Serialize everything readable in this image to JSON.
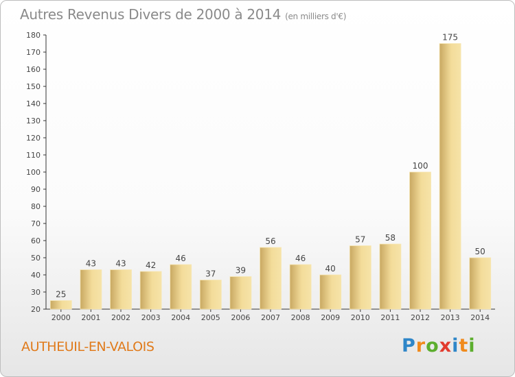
{
  "header": {
    "title": "Autres Revenus Divers de 2000 à 2014",
    "unit": "(en milliers d'€)"
  },
  "footer": {
    "commune": "AUTHEUIL-EN-VALOIS",
    "logo_letters": [
      "P",
      "r",
      "o",
      "x",
      "i",
      "t",
      "i"
    ],
    "logo_colors": [
      "#2e86c8",
      "#f08a1c",
      "#5cae2e",
      "#e23b2e",
      "#2e86c8",
      "#f08a1c",
      "#5cae2e"
    ]
  },
  "colors": {
    "bar_light": "#f6e3a6",
    "bar_dark": "#c9aa62",
    "axis": "#333333",
    "title": "#8a8a8a",
    "commune": "#e07a1a"
  },
  "chart_data": {
    "type": "bar",
    "title": "Autres Revenus Divers de 2000 à 2014",
    "subtitle": "(en milliers d'€)",
    "xlabel": "",
    "ylabel": "",
    "categories": [
      "2000",
      "2001",
      "2002",
      "2003",
      "2004",
      "2005",
      "2006",
      "2007",
      "2008",
      "2009",
      "2010",
      "2011",
      "2012",
      "2013",
      "2014"
    ],
    "values": [
      25,
      43,
      43,
      42,
      46,
      37,
      39,
      56,
      46,
      40,
      57,
      58,
      100,
      175,
      50
    ],
    "ylim": [
      20,
      180
    ],
    "yticks": [
      20,
      30,
      40,
      50,
      60,
      70,
      80,
      90,
      100,
      110,
      120,
      130,
      140,
      150,
      160,
      170,
      180
    ],
    "grid": false,
    "legend": "none"
  }
}
